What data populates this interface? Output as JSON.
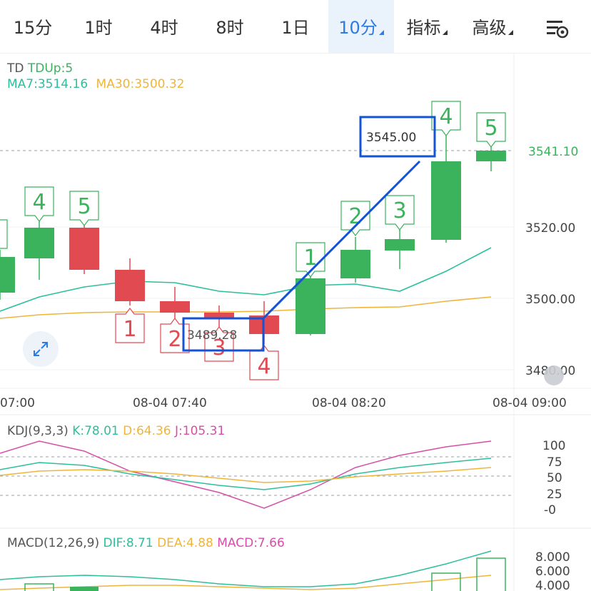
{
  "tabs": [
    {
      "label": "15分",
      "active": false,
      "dropdown": false
    },
    {
      "label": "1时",
      "active": false,
      "dropdown": false
    },
    {
      "label": "4时",
      "active": false,
      "dropdown": false
    },
    {
      "label": "8时",
      "active": false,
      "dropdown": false
    },
    {
      "label": "1日",
      "active": false,
      "dropdown": false
    },
    {
      "label": "10分",
      "active": true,
      "dropdown": true
    },
    {
      "label": "指标",
      "active": false,
      "dropdown": true
    },
    {
      "label": "高级",
      "active": false,
      "dropdown": true
    }
  ],
  "settings_icon": "chart-settings-icon",
  "main_legend": {
    "td_name": "TD",
    "td_value": "TDUp:5",
    "ma7": "MA7:3514.16",
    "ma30": "MA30:3500.32"
  },
  "y_axis_labels": [
    "3520.00",
    "3500.00",
    "3480.00"
  ],
  "current_price": "3541.10",
  "x_axis_labels": [
    "07:00",
    "08-04 07:40",
    "08-04 08:20",
    "08-04 09:00"
  ],
  "annotations": {
    "high_label": "3545.00",
    "low_label": "3489.28"
  },
  "td_counts_up": [
    "4",
    "5",
    "1",
    "2",
    "3",
    "4",
    "5"
  ],
  "td_counts_down": [
    "1",
    "2",
    "3",
    "4"
  ],
  "kdj_legend": {
    "name": "KDJ(9,3,3)",
    "k": "K:78.01",
    "d": "D:64.36",
    "j": "J:105.31"
  },
  "kdj_axis_labels": [
    "100",
    "75",
    "50",
    "25",
    "-0"
  ],
  "macd_legend": {
    "name": "MACD(12,26,9)",
    "dif": "DIF:8.71",
    "dea": "DEA:4.88",
    "macd": "MACD:7.66"
  },
  "macd_axis_labels": [
    "8.000",
    "6.000",
    "4.000"
  ],
  "colors": {
    "up": "#3bb35c",
    "down": "#e24a52",
    "ma7": "#2bbf9c",
    "ma30": "#efb53a",
    "k": "#2bbf9c",
    "d": "#efb53a",
    "j": "#d64ea7",
    "accent": "#2f7be0",
    "highlight_box": "#1453d6"
  },
  "expand_icon": "expand-icon"
}
